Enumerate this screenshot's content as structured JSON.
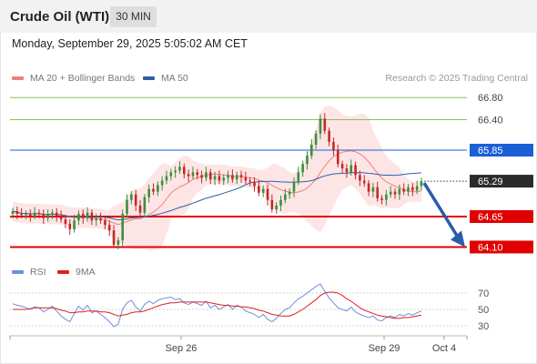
{
  "header": {
    "title": "Crude Oil (WTI)",
    "timeframe": "30 MIN",
    "datetime": "Monday, September 29, 2025 5:05:02 AM CET"
  },
  "legend": {
    "ma20_bb": "MA 20 + Bollinger Bands",
    "ma50": "MA 50",
    "credit": "Research © 2025 Trading Central",
    "rsi": "RSI",
    "rsi_ma": "9MA"
  },
  "colors": {
    "ma20": "#f08080",
    "ma50": "#2f5fa7",
    "band_fill": "#fde0e0",
    "green_level": "#8cc152",
    "blue_level": "#1a5fd6",
    "red_level": "#e00000",
    "candle_up": "#3c8f3c",
    "candle_down": "#c62828",
    "arrow": "#2a5ca8",
    "rsi": "#6f8fd8",
    "rsi_ma": "#e02020"
  },
  "chart_data": {
    "type": "candlestick",
    "instrument": "Crude Oil (WTI)",
    "timeframe": "30 MIN",
    "x_ticks": [
      "Sep 26",
      "Sep 29",
      "Oct 4"
    ],
    "levels": [
      {
        "value": 66.8,
        "label": "66.80",
        "kind": "resistance",
        "style": "green"
      },
      {
        "value": 66.4,
        "label": "66.40",
        "kind": "resistance",
        "style": "green"
      },
      {
        "value": 65.85,
        "label": "65.85",
        "kind": "pivot",
        "style": "blue"
      },
      {
        "value": 65.29,
        "label": "65.29",
        "kind": "current",
        "style": "dark"
      },
      {
        "value": 64.65,
        "label": "64.65",
        "kind": "support",
        "style": "red"
      },
      {
        "value": 64.1,
        "label": "64.10",
        "kind": "support",
        "style": "red"
      }
    ],
    "closes": [
      64.75,
      64.7,
      64.68,
      64.7,
      64.66,
      64.72,
      64.7,
      64.62,
      64.68,
      64.72,
      64.66,
      64.6,
      64.52,
      64.42,
      64.58,
      64.7,
      64.62,
      64.72,
      64.58,
      64.62,
      64.58,
      64.5,
      64.4,
      64.14,
      64.22,
      64.7,
      64.95,
      65.05,
      64.85,
      64.72,
      65.0,
      65.15,
      65.1,
      65.22,
      65.3,
      65.38,
      65.45,
      65.48,
      65.55,
      65.42,
      65.38,
      65.45,
      65.4,
      65.35,
      65.45,
      65.32,
      65.38,
      65.3,
      65.35,
      65.4,
      65.32,
      65.4,
      65.36,
      65.3,
      65.28,
      65.2,
      65.08,
      65.15,
      64.95,
      64.78,
      64.85,
      64.95,
      65.05,
      65.1,
      65.28,
      65.45,
      65.6,
      65.75,
      65.95,
      66.15,
      66.42,
      66.2,
      66.0,
      65.85,
      65.6,
      65.52,
      65.45,
      65.58,
      65.4,
      65.3,
      65.25,
      65.1,
      65.18,
      64.98,
      64.95,
      65.05,
      65.1,
      65.05,
      65.15,
      65.1,
      65.18,
      65.12,
      65.2,
      65.29
    ],
    "projection": {
      "from": 65.29,
      "to": 64.1
    },
    "rsi": {
      "name": "RSI",
      "ma_name": "9MA",
      "levels": [
        70,
        50,
        30
      ],
      "values": [
        57,
        55,
        54,
        52,
        50,
        53,
        52,
        47,
        50,
        54,
        48,
        42,
        38,
        35,
        45,
        54,
        49,
        55,
        46,
        48,
        44,
        40,
        35,
        29,
        32,
        50,
        58,
        61,
        53,
        48,
        56,
        60,
        57,
        61,
        63,
        64,
        65,
        62,
        63,
        58,
        56,
        59,
        57,
        55,
        60,
        52,
        55,
        50,
        53,
        56,
        50,
        55,
        53,
        48,
        46,
        44,
        40,
        44,
        38,
        35,
        39,
        45,
        50,
        52,
        58,
        63,
        66,
        70,
        74,
        78,
        81,
        72,
        64,
        58,
        52,
        50,
        48,
        53,
        47,
        44,
        42,
        40,
        42,
        37,
        36,
        40,
        42,
        40,
        44,
        42,
        45,
        43,
        46,
        48
      ],
      "ma_values": [
        50,
        50,
        50,
        50,
        51,
        52,
        52,
        52,
        52,
        52,
        51,
        49,
        48,
        46,
        46,
        47,
        47,
        48,
        48,
        48,
        47,
        47,
        46,
        44,
        42,
        43,
        44,
        46,
        47,
        47,
        48,
        50,
        52,
        54,
        56,
        57,
        58,
        58,
        59,
        59,
        59,
        59,
        59,
        59,
        59,
        58,
        57,
        56,
        55,
        55,
        54,
        54,
        53,
        53,
        52,
        51,
        49,
        48,
        46,
        44,
        43,
        42,
        42,
        42,
        44,
        47,
        50,
        54,
        58,
        62,
        67,
        70,
        71,
        71,
        70,
        67,
        63,
        60,
        56,
        52,
        49,
        47,
        45,
        43,
        42,
        41,
        40,
        39,
        39,
        40,
        40,
        41,
        42,
        43
      ]
    }
  }
}
